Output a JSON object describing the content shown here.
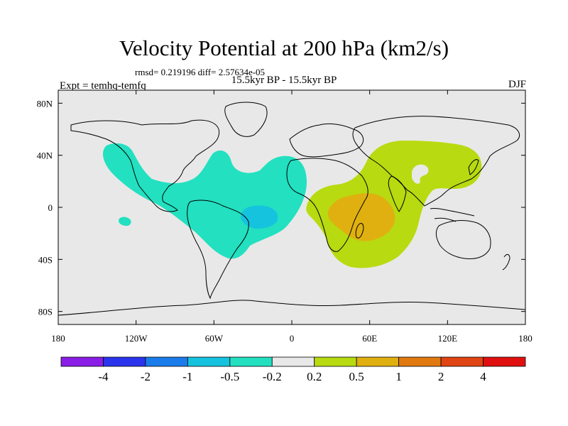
{
  "header": {
    "title": "Velocity Potential at 200 hPa (km2/s)",
    "stats": "rmsd= 0.219196 diff= 2.57634e-05",
    "expt": "Expt = temhq-temfq",
    "period": "15.5kyr BP - 15.5kyr BP",
    "season": "DJF"
  },
  "map": {
    "projection": "cylindrical-equidistant",
    "lon_range": [
      -180,
      180
    ],
    "lat_range": [
      -90,
      90
    ],
    "background_color": "#e8e8e8",
    "lon_ticks": [
      {
        "value": -180,
        "label": "180"
      },
      {
        "value": -120,
        "label": "120W"
      },
      {
        "value": -60,
        "label": "60W"
      },
      {
        "value": 0,
        "label": "0"
      },
      {
        "value": 60,
        "label": "60E"
      },
      {
        "value": 120,
        "label": "120E"
      },
      {
        "value": 180,
        "label": "180"
      }
    ],
    "lat_ticks": [
      {
        "value": 80,
        "label": "80N"
      },
      {
        "value": 40,
        "label": "40N"
      },
      {
        "value": 0,
        "label": "0"
      },
      {
        "value": -40,
        "label": "40S"
      },
      {
        "value": -80,
        "label": "80S"
      }
    ],
    "contour_regions": [
      {
        "name": "negative-anomaly-americas-atlantic",
        "level": "-0.5 to -0.2",
        "color": "#22e0c0"
      },
      {
        "name": "negative-anomaly-brazil-core",
        "level": "-1 to -0.5",
        "color": "#15c3df"
      },
      {
        "name": "negative-anomaly-pacific-spot",
        "level": "-0.5 to -0.2",
        "color": "#22e0c0"
      },
      {
        "name": "positive-anomaly-africa-asia",
        "level": "0.2 to 0.5",
        "color": "#b8da10"
      },
      {
        "name": "positive-anomaly-madagascar-core",
        "level": "0.5 to 1",
        "color": "#e0b010"
      }
    ]
  },
  "colorbar": {
    "boxes": [
      {
        "color": "#8a1ee6"
      },
      {
        "color": "#2a34ec"
      },
      {
        "color": "#1a7cea"
      },
      {
        "color": "#15c3df"
      },
      {
        "color": "#22e0c0"
      },
      {
        "color": "#e8e8e8"
      },
      {
        "color": "#b8da10"
      },
      {
        "color": "#e0b010"
      },
      {
        "color": "#e07a10"
      },
      {
        "color": "#e04414"
      },
      {
        "color": "#e01010"
      }
    ],
    "labels": [
      "-4",
      "-2",
      "-1",
      "-0.5",
      "-0.2",
      "0.2",
      "0.5",
      "1",
      "2",
      "4"
    ]
  }
}
